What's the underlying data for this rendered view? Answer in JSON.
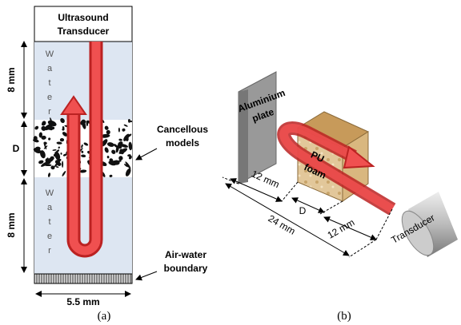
{
  "panel_a": {
    "transducer": [
      "Ultrasound",
      "Transducer"
    ],
    "water_top": "Water",
    "water_bottom": "Water",
    "dim_top": "8 mm",
    "dim_middle": "D",
    "dim_bottom": "8 mm",
    "cancellous": [
      "Cancellous",
      "models"
    ],
    "boundary": [
      "Air-water",
      "boundary"
    ],
    "width": "5.5 mm",
    "caption": "(a)"
  },
  "panel_b": {
    "plate": [
      "Aluminium",
      "plate"
    ],
    "foam": [
      "PU",
      "foam"
    ],
    "dim_plate": "12 mm",
    "dim_d": "D",
    "dim_total": "24 mm",
    "dim_transducer": "12 mm",
    "transducer": "Transducer",
    "caption": "(b)"
  }
}
